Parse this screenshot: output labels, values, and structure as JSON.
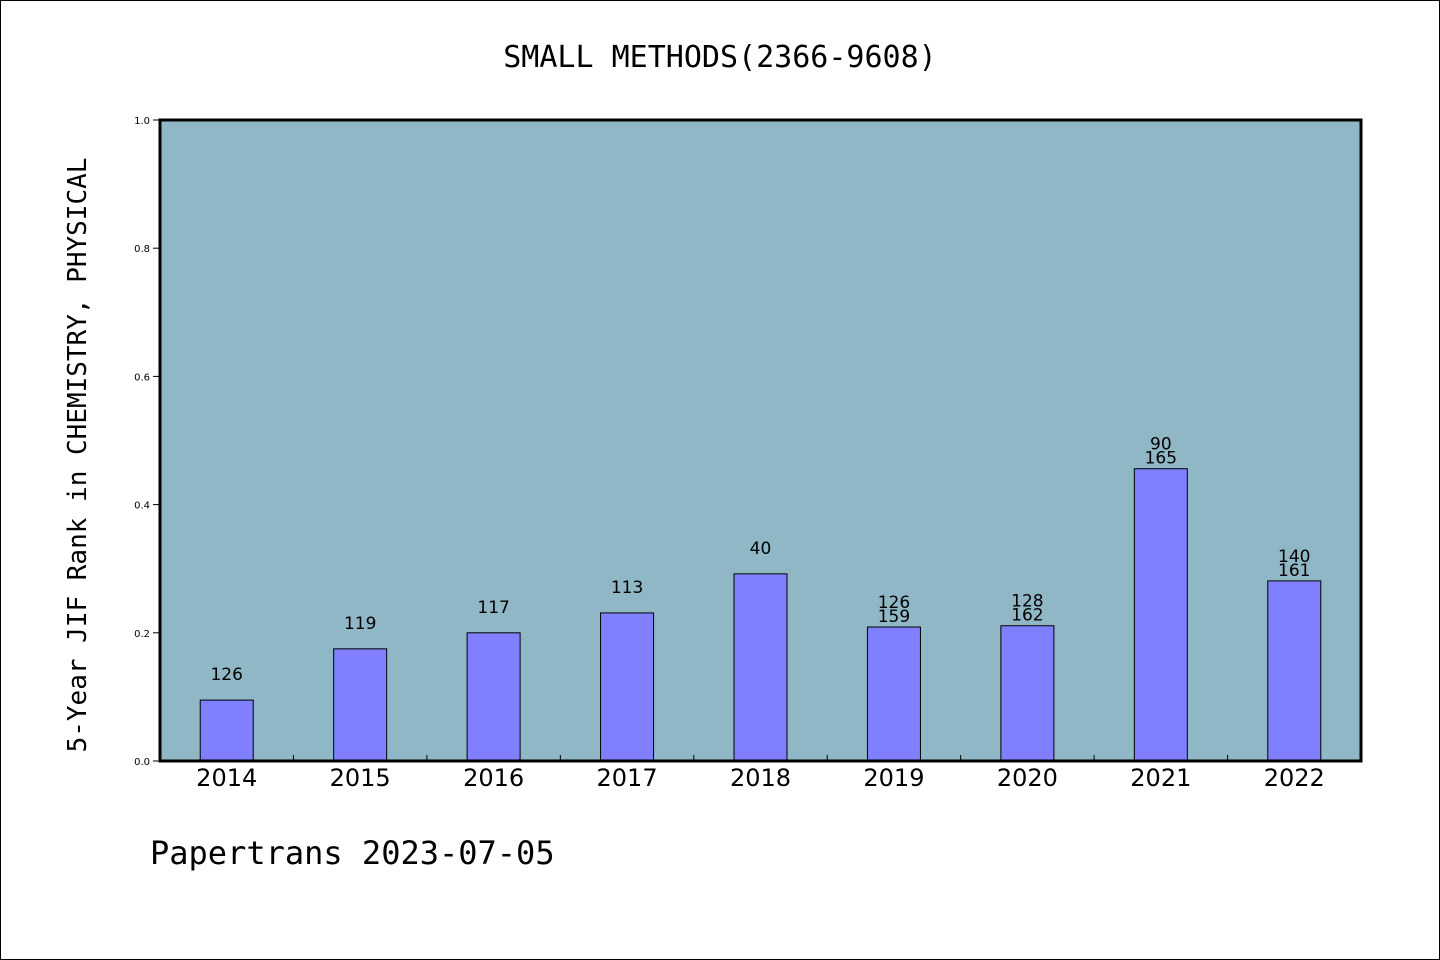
{
  "chart_data": {
    "type": "bar",
    "title": "SMALL METHODS(2366-9608)",
    "ylabel": "5-Year JIF Rank in CHEMISTRY, PHYSICAL",
    "xlabel": "",
    "categories": [
      "2014",
      "2015",
      "2016",
      "2017",
      "2018",
      "2019",
      "2020",
      "2021",
      "2022"
    ],
    "values": [
      0.095,
      0.175,
      0.2,
      0.231,
      0.292,
      0.209,
      0.211,
      0.456,
      0.281
    ],
    "labels": [
      [
        "126"
      ],
      [
        "119"
      ],
      [
        "117"
      ],
      [
        "113"
      ],
      [
        "40"
      ],
      [
        "126",
        "159"
      ],
      [
        "128",
        "162"
      ],
      [
        "90",
        "165"
      ],
      [
        "140",
        "161"
      ]
    ],
    "ylim": [
      0,
      1.0
    ],
    "yticks": [
      "0.0",
      "0.2",
      "0.4",
      "0.6",
      "0.8",
      "1.0"
    ],
    "grid": false,
    "colors": {
      "plot_background": "#8fb7c5",
      "bar": "#8080ff",
      "axis": "#000000"
    }
  },
  "footer": {
    "text": "Papertrans 2023-07-05"
  }
}
